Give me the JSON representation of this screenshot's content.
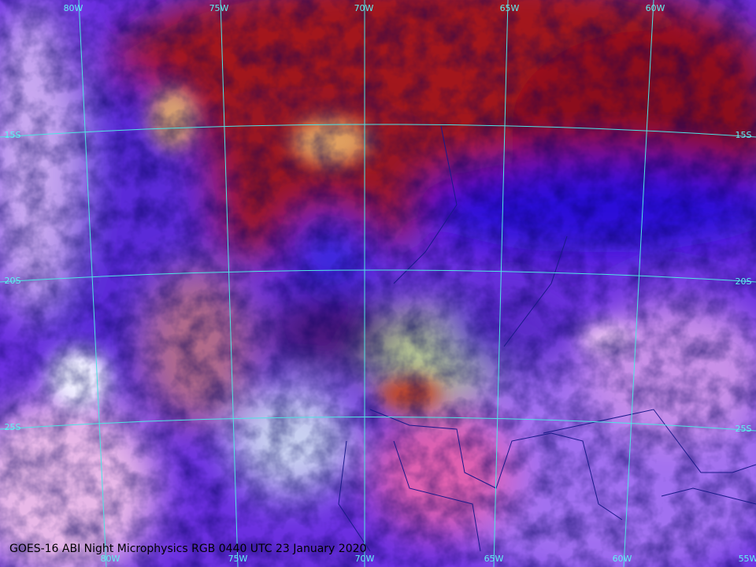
{
  "map": {
    "caption": "GOES-16 ABI Night Microphysics RGB 0440 UTC 23 January 2020",
    "top_labels": [
      "80W",
      "75W",
      "70W",
      "65W",
      "60W"
    ],
    "bottom_labels": [
      "80W",
      "75W",
      "70W",
      "65W",
      "60W",
      "55W"
    ],
    "left_labels": [
      "15S",
      "20S",
      "25S"
    ],
    "right_labels": [
      "15S",
      "20S",
      "25S"
    ]
  }
}
